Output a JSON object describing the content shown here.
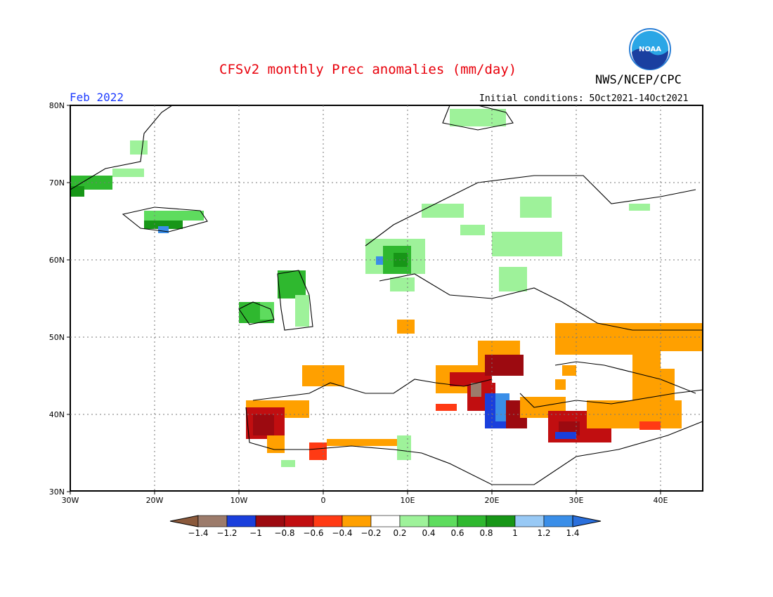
{
  "header": {
    "title": "CFSv2 monthly Prec anomalies (mm/day)",
    "agency": "NWS/NCEP/CPC",
    "month": "Feb 2022",
    "initial_conditions": "Initial conditions: 5Oct2021-14Oct2021",
    "logo_text": "NOAA"
  },
  "map": {
    "lon_labels": [
      "30W",
      "20W",
      "10W",
      "0",
      "10E",
      "20E",
      "30E",
      "40E"
    ],
    "lat_labels": [
      "80N",
      "70N",
      "60N",
      "50N",
      "40N",
      "30N"
    ],
    "grid": "dotted"
  },
  "colorbar": {
    "ticks": [
      "-1.4",
      "-1.2",
      "-1",
      "-0.8",
      "-0.6",
      "-0.4",
      "-0.2",
      "0.2",
      "0.4",
      "0.6",
      "0.8",
      "1",
      "1.2",
      "1.4"
    ],
    "colors": [
      "#8b5a3c",
      "#9c7b6b",
      "#1a3fdc",
      "#9c0a10",
      "#c10e10",
      "#ff3a14",
      "#ffa000",
      "#ffffff",
      "#9ef29a",
      "#5edc5e",
      "#2fb82f",
      "#179617",
      "#98c9f5",
      "#3a8ee8",
      "#2a6fdc"
    ]
  },
  "legend_colors": {
    "orange": "#ffa000",
    "red": "#c10e10",
    "darkred": "#9c0a10",
    "lightgreen": "#9ef29a",
    "green": "#5edc5e",
    "darkgreen": "#2fb82f",
    "blue": "#1a3fdc",
    "lightblue": "#3a8ee8"
  }
}
